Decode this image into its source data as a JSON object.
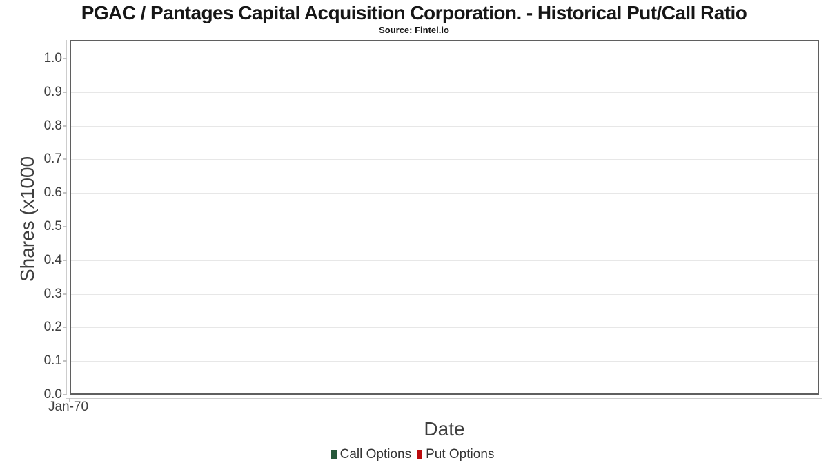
{
  "header": {
    "title": "PGAC / Pantages Capital Acquisition Corporation. - Historical Put/Call Ratio",
    "source": "Source: Fintel.io"
  },
  "chart_data": {
    "type": "line",
    "title": "PGAC / Pantages Capital Acquisition Corporation. - Historical Put/Call Ratio",
    "subtitle": "Source: Fintel.io",
    "xlabel": "Date",
    "ylabel": "Shares (x1000",
    "ylim": [
      0.0,
      1.0
    ],
    "yticks": [
      "0.0",
      "0.1",
      "0.2",
      "0.3",
      "0.4",
      "0.5",
      "0.6",
      "0.7",
      "0.8",
      "0.9",
      "1.0"
    ],
    "xticks": [
      "Jan-70"
    ],
    "grid": true,
    "legend_position": "bottom",
    "series": [
      {
        "name": "Call Options",
        "color": "#26583a",
        "values": []
      },
      {
        "name": "Put Options",
        "color": "#bb0a0d",
        "values": []
      }
    ]
  }
}
